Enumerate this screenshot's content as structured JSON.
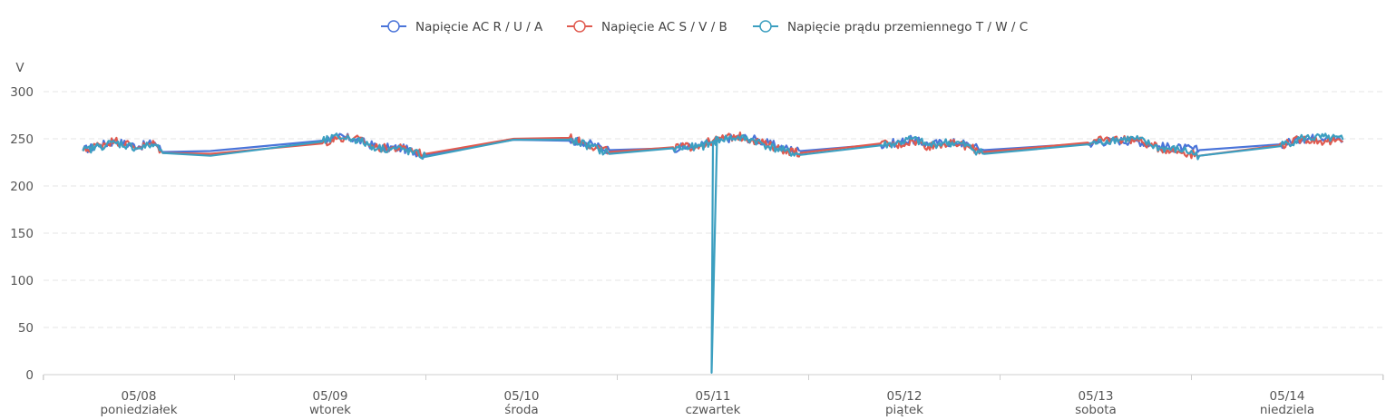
{
  "chart_data": {
    "type": "line",
    "ylabel": "V",
    "ylim": [
      0,
      300
    ],
    "y_ticks": [
      "0",
      "50",
      "100",
      "150",
      "200",
      "250",
      "300"
    ],
    "grid": true,
    "legend_position": "top-center",
    "x_ticks": [
      {
        "date": "05/08",
        "day": "poniedziałek"
      },
      {
        "date": "05/09",
        "day": "wtorek"
      },
      {
        "date": "05/10",
        "day": "środa"
      },
      {
        "date": "05/11",
        "day": "czwartek"
      },
      {
        "date": "05/12",
        "day": "piątek"
      },
      {
        "date": "05/13",
        "day": "sobota"
      },
      {
        "date": "05/14",
        "day": "niedziela"
      }
    ],
    "x_range": [
      "05/07 12:00",
      "05/14 23:59"
    ],
    "series": [
      {
        "name": "Napięcie AC R / U / A",
        "color": "#4a74d9",
        "points": [
          [
            "05/07 17:00",
            238
          ],
          [
            "05/07 19:00",
            243
          ],
          [
            "05/07 21:00",
            247
          ],
          [
            "05/08 00:00",
            242
          ],
          [
            "05/08 02:00",
            246
          ],
          [
            "05/08 03:00",
            236
          ],
          [
            "05/08 09:00",
            237
          ],
          [
            "05/08 23:00",
            248
          ],
          [
            "05/09 01:00",
            252
          ],
          [
            "05/09 03:00",
            250
          ],
          [
            "05/09 06:00",
            241
          ],
          [
            "05/09 09:00",
            240
          ],
          [
            "05/09 12:00",
            233
          ],
          [
            "05/09 23:00",
            249
          ],
          [
            "05/10 06:00",
            248
          ],
          [
            "05/10 08:00",
            246
          ],
          [
            "05/10 11:00",
            238
          ],
          [
            "05/10 19:00",
            240
          ],
          [
            "05/10 22:00",
            242
          ],
          [
            "05/11 00:00",
            247
          ],
          [
            "05/11 01:00",
            249
          ],
          [
            "05/11 03:00",
            252
          ],
          [
            "05/11 05:00",
            250
          ],
          [
            "05/11 07:00",
            245
          ],
          [
            "05/11 09:00",
            240
          ],
          [
            "05/11 11:00",
            237
          ],
          [
            "05/11 21:00",
            244
          ],
          [
            "05/11 23:00",
            246
          ],
          [
            "05/12 01:00",
            249
          ],
          [
            "05/12 03:00",
            244
          ],
          [
            "05/12 05:00",
            246
          ],
          [
            "05/12 07:00",
            246
          ],
          [
            "05/12 10:00",
            238
          ],
          [
            "05/12 23:00",
            245
          ],
          [
            "05/13 02:00",
            248
          ],
          [
            "05/13 05:00",
            248
          ],
          [
            "05/13 08:00",
            242
          ],
          [
            "05/13 11:00",
            240
          ],
          [
            "05/13 13:00",
            238
          ],
          [
            "05/13 23:00",
            244
          ],
          [
            "05/14 02:00",
            250
          ],
          [
            "05/14 05:00",
            252
          ],
          [
            "05/14 07:00",
            248
          ]
        ]
      },
      {
        "name": "Napięcie AC S / V / B",
        "color": "#e05a4f",
        "points": [
          [
            "05/07 17:00",
            237
          ],
          [
            "05/07 19:00",
            244
          ],
          [
            "05/07 21:00",
            248
          ],
          [
            "05/08 00:00",
            241
          ],
          [
            "05/08 02:00",
            245
          ],
          [
            "05/08 03:00",
            235
          ],
          [
            "05/08 09:00",
            234
          ],
          [
            "05/08 23:00",
            245
          ],
          [
            "05/09 01:00",
            251
          ],
          [
            "05/09 03:00",
            251
          ],
          [
            "05/09 06:00",
            240
          ],
          [
            "05/09 09:00",
            240
          ],
          [
            "05/09 12:00",
            234
          ],
          [
            "05/09 23:00",
            250
          ],
          [
            "05/10 06:00",
            251
          ],
          [
            "05/10 08:00",
            245
          ],
          [
            "05/10 11:00",
            236
          ],
          [
            "05/10 19:00",
            241
          ],
          [
            "05/10 22:00",
            242
          ],
          [
            "05/11 00:00",
            248
          ],
          [
            "05/11 01:00",
            250
          ],
          [
            "05/11 03:00",
            253
          ],
          [
            "05/11 05:00",
            249
          ],
          [
            "05/11 07:00",
            243
          ],
          [
            "05/11 09:00",
            238
          ],
          [
            "05/11 11:00",
            235
          ],
          [
            "05/11 21:00",
            245
          ],
          [
            "05/11 23:00",
            243
          ],
          [
            "05/12 01:00",
            248
          ],
          [
            "05/12 03:00",
            242
          ],
          [
            "05/12 05:00",
            245
          ],
          [
            "05/12 07:00",
            244
          ],
          [
            "05/12 10:00",
            236
          ],
          [
            "05/12 23:00",
            246
          ],
          [
            "05/13 02:00",
            250
          ],
          [
            "05/13 05:00",
            249
          ],
          [
            "05/13 08:00",
            240
          ],
          [
            "05/13 11:00",
            236
          ],
          [
            "05/13 13:00",
            232
          ],
          [
            "05/13 23:00",
            243
          ],
          [
            "05/14 02:00",
            250
          ],
          [
            "05/14 05:00",
            247
          ],
          [
            "05/14 07:00",
            247
          ]
        ]
      },
      {
        "name": "Napięcie prądu przemiennego T / W / C",
        "color": "#3c9fc0",
        "points": [
          [
            "05/07 17:00",
            237
          ],
          [
            "05/07 19:00",
            242
          ],
          [
            "05/07 21:00",
            246
          ],
          [
            "05/08 00:00",
            240
          ],
          [
            "05/08 02:00",
            244
          ],
          [
            "05/08 03:00",
            235
          ],
          [
            "05/08 09:00",
            232
          ],
          [
            "05/08 23:00",
            247
          ],
          [
            "05/09 01:00",
            252
          ],
          [
            "05/09 03:00",
            250
          ],
          [
            "05/09 06:00",
            240
          ],
          [
            "05/09 09:00",
            239
          ],
          [
            "05/09 12:00",
            231
          ],
          [
            "05/09 23:00",
            249
          ],
          [
            "05/10 06:00",
            249
          ],
          [
            "05/10 08:00",
            244
          ],
          [
            "05/10 11:00",
            234
          ],
          [
            "05/10 19:00",
            240
          ],
          [
            "05/10 22:00",
            241
          ],
          [
            "05/11 00:00",
            246
          ],
          [
            "05/11 00:30",
            248
          ],
          [
            "05/10 23:50",
            2
          ],
          [
            "05/11 00:00",
            247
          ],
          [
            "05/11 01:00",
            250
          ],
          [
            "05/11 03:00",
            251
          ],
          [
            "05/11 05:00",
            249
          ],
          [
            "05/11 07:00",
            242
          ],
          [
            "05/11 09:00",
            237
          ],
          [
            "05/11 11:00",
            233
          ],
          [
            "05/11 21:00",
            243
          ],
          [
            "05/11 23:00",
            245
          ],
          [
            "05/12 01:00",
            250
          ],
          [
            "05/12 03:00",
            243
          ],
          [
            "05/12 05:00",
            246
          ],
          [
            "05/12 07:00",
            245
          ],
          [
            "05/12 10:00",
            234
          ],
          [
            "05/12 23:00",
            244
          ],
          [
            "05/13 02:00",
            249
          ],
          [
            "05/13 05:00",
            250
          ],
          [
            "05/13 08:00",
            240
          ],
          [
            "05/13 11:00",
            238
          ],
          [
            "05/13 13:00",
            232
          ],
          [
            "05/13 23:00",
            242
          ],
          [
            "05/14 02:00",
            251
          ],
          [
            "05/14 05:00",
            251
          ],
          [
            "05/14 07:00",
            249
          ]
        ]
      }
    ]
  }
}
